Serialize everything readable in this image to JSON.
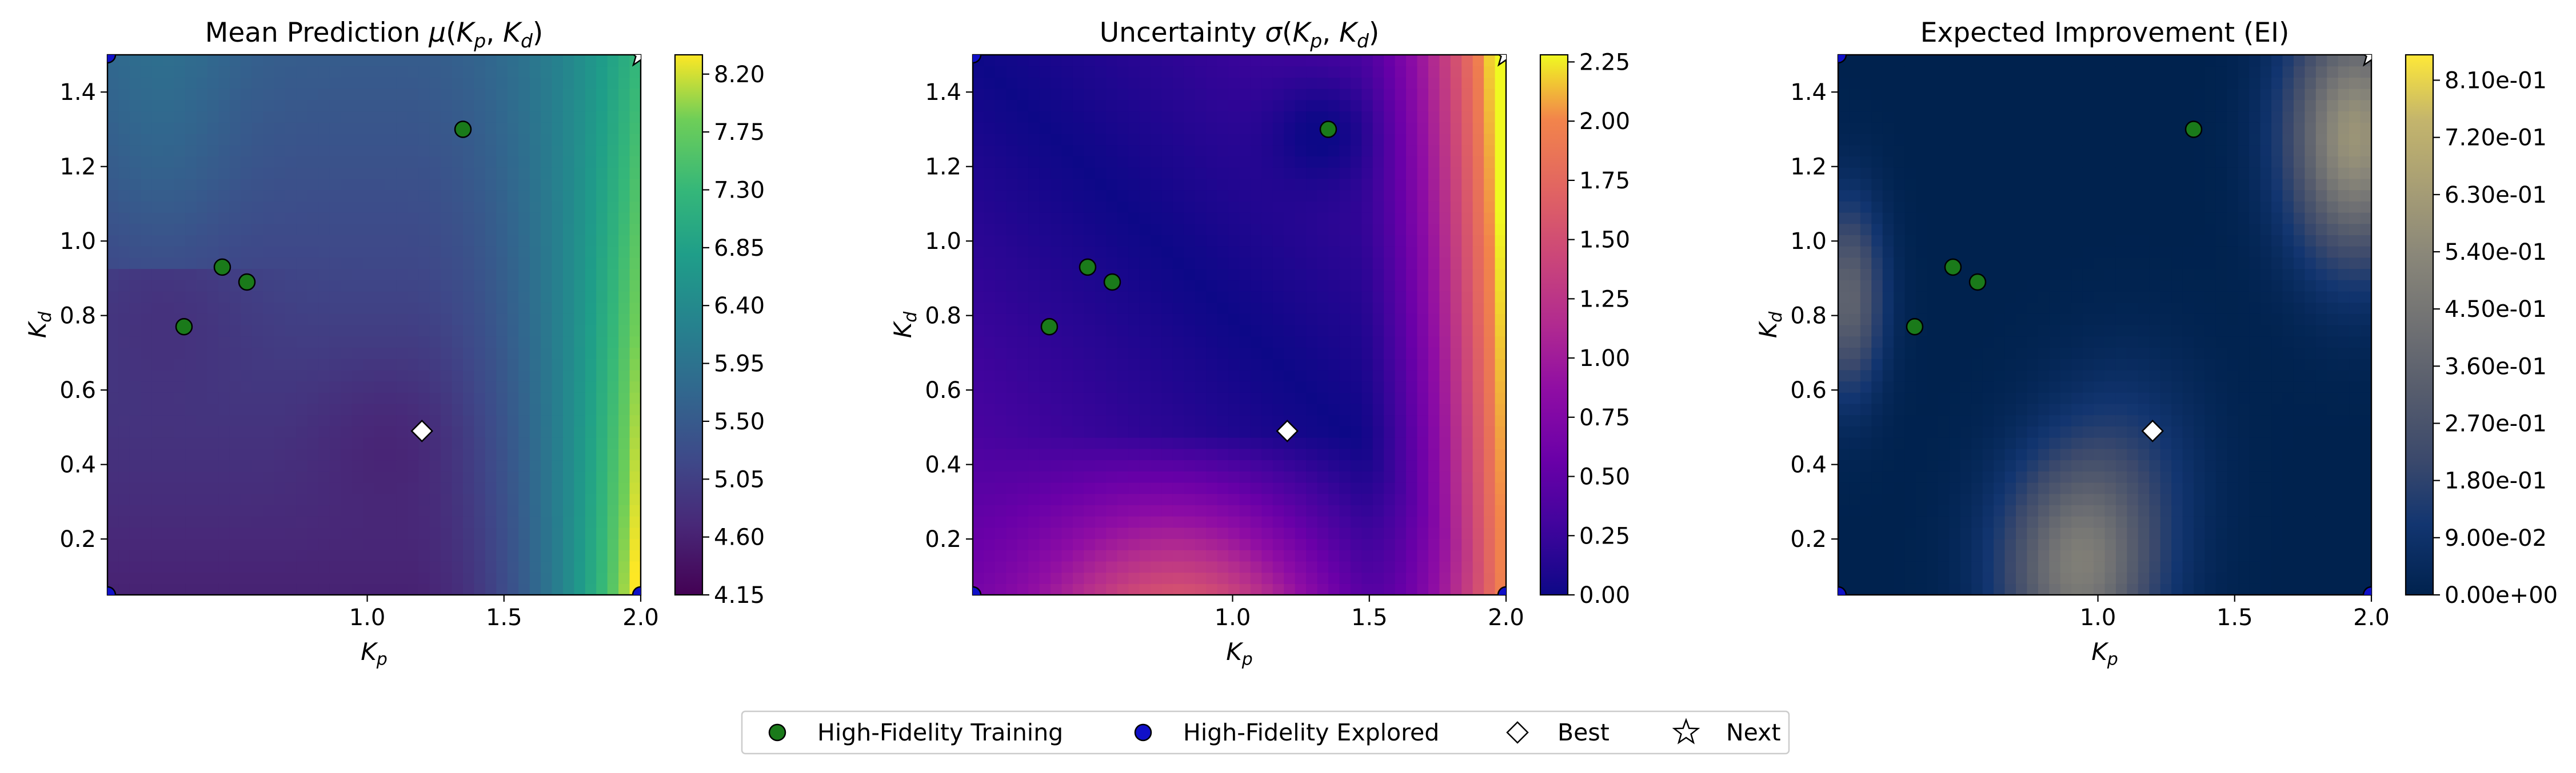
{
  "figure": {
    "panels": [
      {
        "title": "Mean Prediction μ(K_p, K_d)",
        "colormap": "viridis",
        "colorbar_ticks": [
          "4.15",
          "4.60",
          "5.05",
          "5.50",
          "5.95",
          "6.40",
          "6.85",
          "7.30",
          "7.75",
          "8.20"
        ],
        "colorbar_range": [
          4.15,
          8.35
        ]
      },
      {
        "title": "Uncertainty σ(K_p, K_d)",
        "colormap": "plasma",
        "colorbar_ticks": [
          "0.00",
          "0.25",
          "0.50",
          "0.75",
          "1.00",
          "1.25",
          "1.50",
          "1.75",
          "2.00",
          "2.25"
        ],
        "colorbar_range": [
          0.0,
          2.28
        ]
      },
      {
        "title": "Expected Improvement (EI)",
        "colormap": "cividis",
        "colorbar_ticks": [
          "0.00e+00",
          "9.00e-02",
          "1.80e-01",
          "2.70e-01",
          "3.60e-01",
          "4.50e-01",
          "5.40e-01",
          "6.30e-01",
          "7.20e-01",
          "8.10e-01"
        ],
        "colorbar_range": [
          0.0,
          0.85
        ]
      }
    ],
    "xlabel": "K_p",
    "ylabel": "K_d",
    "xticks": [
      "1.0",
      "1.5",
      "2.0"
    ],
    "yticks": [
      "0.2",
      "0.4",
      "0.6",
      "0.8",
      "1.0",
      "1.2",
      "1.4"
    ],
    "legend": [
      {
        "label": "High-Fidelity Training",
        "marker": "circle",
        "color": "#1a7a1a"
      },
      {
        "label": "High-Fidelity Explored",
        "marker": "circle",
        "color": "#1010c8"
      },
      {
        "label": "Best",
        "marker": "diamond",
        "color": "#ffffff"
      },
      {
        "label": "Next",
        "marker": "star",
        "color": "#ffffff"
      }
    ]
  },
  "chart_data": {
    "type": "heatmap",
    "xlim": [
      0.05,
      2.0
    ],
    "ylim": [
      0.05,
      1.5
    ],
    "xticks": [
      1.0,
      1.5,
      2.0
    ],
    "yticks": [
      0.2,
      0.4,
      0.6,
      0.8,
      1.0,
      1.2,
      1.4
    ],
    "high_fidelity_training": [
      {
        "x": 0.33,
        "y": 0.77
      },
      {
        "x": 0.47,
        "y": 0.93
      },
      {
        "x": 0.56,
        "y": 0.89
      },
      {
        "x": 1.35,
        "y": 1.3
      }
    ],
    "high_fidelity_explored": [
      {
        "x": 0.05,
        "y": 1.5
      },
      {
        "x": 0.05,
        "y": 0.05
      },
      {
        "x": 2.0,
        "y": 0.05
      }
    ],
    "best": {
      "x": 1.2,
      "y": 0.49
    },
    "next": {
      "x": 2.0,
      "y": 1.5
    },
    "legend_placement": "bottom-center",
    "grid": false
  }
}
